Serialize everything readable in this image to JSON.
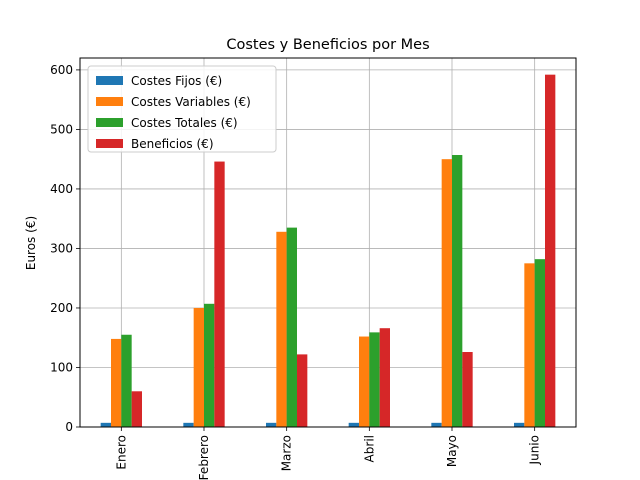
{
  "chart_data": {
    "type": "bar",
    "title": "Costes y Beneficios por Mes",
    "xlabel": "",
    "ylabel": "Euros (€)",
    "categories": [
      "Enero",
      "Febrero",
      "Marzo",
      "Abril",
      "Mayo",
      "Junio"
    ],
    "ylim": [
      0,
      620
    ],
    "yticks": [
      0,
      100,
      200,
      300,
      400,
      500,
      600
    ],
    "grid": true,
    "legend_position": "top-left",
    "series": [
      {
        "name": "Costes Fijos (€)",
        "color": "#1f77b4",
        "values": [
          7,
          7,
          7,
          7,
          7,
          7
        ]
      },
      {
        "name": "Costes Variables (€)",
        "color": "#ff7f0e",
        "values": [
          148,
          200,
          328,
          152,
          450,
          275
        ]
      },
      {
        "name": "Costes Totales (€)",
        "color": "#2ca02c",
        "values": [
          155,
          207,
          335,
          159,
          457,
          282
        ]
      },
      {
        "name": "Beneficios (€)",
        "color": "#d62728",
        "values": [
          60,
          446,
          122,
          166,
          126,
          592
        ]
      }
    ]
  }
}
